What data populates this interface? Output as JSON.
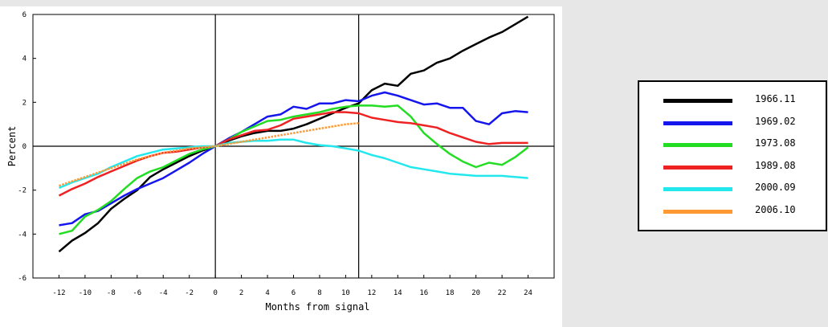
{
  "chart_data": {
    "type": "line",
    "title": "",
    "xlabel": "Months from signal",
    "ylabel": "Percent",
    "xlim": [
      -14,
      26
    ],
    "ylim": [
      -6,
      6
    ],
    "xticks": [
      -12,
      -10,
      -8,
      -6,
      -4,
      -2,
      0,
      2,
      4,
      6,
      8,
      10,
      12,
      14,
      16,
      18,
      20,
      22,
      24
    ],
    "xtick_labels": [
      "-12",
      "-10",
      "-8",
      "-6",
      "-4",
      "-2",
      "0",
      "2",
      "4",
      "6",
      "8",
      "10",
      "12",
      "14",
      "16",
      "18",
      "20",
      "22",
      "24"
    ],
    "yticks": [
      -6,
      -4,
      -2,
      0,
      2,
      4,
      6
    ],
    "ytick_labels": [
      "-6",
      "-4",
      "-2",
      "0",
      "2",
      "4",
      "6"
    ],
    "vertical_lines": [
      0,
      11
    ],
    "horizontal_lines": [
      0
    ],
    "grid": false,
    "legend_position": "right, outside plot",
    "series": [
      {
        "name": "1966.11",
        "color": "#000000",
        "dashed": false,
        "x": [
          -12,
          -11,
          -10,
          -9,
          -8,
          -7,
          -6,
          -5,
          -4,
          -3,
          -2,
          -1,
          0,
          1,
          2,
          3,
          4,
          5,
          6,
          7,
          8,
          9,
          10,
          11,
          12,
          13,
          14,
          15,
          16,
          17,
          18,
          19,
          20,
          21,
          22,
          23,
          24
        ],
        "y": [
          -4.8,
          -4.3,
          -3.95,
          -3.5,
          -2.85,
          -2.4,
          -2.0,
          -1.4,
          -1.05,
          -0.75,
          -0.45,
          -0.2,
          0.0,
          0.25,
          0.45,
          0.6,
          0.7,
          0.7,
          0.8,
          1.0,
          1.25,
          1.5,
          1.75,
          1.95,
          2.55,
          2.85,
          2.75,
          3.3,
          3.45,
          3.8,
          4.0,
          4.35,
          4.65,
          4.95,
          5.2,
          5.55,
          5.9
        ]
      },
      {
        "name": "1969.02",
        "color": "#1515ee",
        "dashed": false,
        "x": [
          -12,
          -11,
          -10,
          -9,
          -8,
          -7,
          -6,
          -5,
          -4,
          -3,
          -2,
          -1,
          0,
          1,
          2,
          3,
          4,
          5,
          6,
          7,
          8,
          9,
          10,
          11,
          12,
          13,
          14,
          15,
          16,
          17,
          18,
          19,
          20,
          21,
          22,
          23,
          24
        ],
        "y": [
          -3.6,
          -3.5,
          -3.1,
          -2.95,
          -2.6,
          -2.25,
          -1.95,
          -1.7,
          -1.45,
          -1.1,
          -0.75,
          -0.35,
          0.0,
          0.35,
          0.65,
          1.0,
          1.35,
          1.45,
          1.8,
          1.7,
          1.95,
          1.95,
          2.1,
          2.05,
          2.3,
          2.45,
          2.3,
          2.1,
          1.9,
          1.95,
          1.75,
          1.75,
          1.15,
          1.0,
          1.5,
          1.6,
          1.55
        ]
      },
      {
        "name": "1973.08",
        "color": "#22dd22",
        "dashed": false,
        "x": [
          -12,
          -11,
          -10,
          -9,
          -8,
          -7,
          -6,
          -5,
          -4,
          -3,
          -2,
          -1,
          0,
          1,
          2,
          3,
          4,
          5,
          6,
          7,
          8,
          9,
          10,
          11,
          12,
          13,
          14,
          15,
          16,
          17,
          18,
          19,
          20,
          21,
          22,
          23,
          24
        ],
        "y": [
          -4.0,
          -3.85,
          -3.2,
          -2.9,
          -2.5,
          -1.95,
          -1.45,
          -1.15,
          -0.95,
          -0.65,
          -0.35,
          -0.15,
          0.0,
          0.3,
          0.65,
          0.9,
          1.15,
          1.2,
          1.35,
          1.45,
          1.55,
          1.7,
          1.8,
          1.85,
          1.85,
          1.8,
          1.85,
          1.35,
          0.6,
          0.1,
          -0.35,
          -0.7,
          -0.95,
          -0.75,
          -0.85,
          -0.5,
          -0.05
        ]
      },
      {
        "name": "1989.08",
        "color": "#ee2222",
        "dashed": false,
        "x": [
          -12,
          -11,
          -10,
          -9,
          -8,
          -7,
          -6,
          -5,
          -4,
          -3,
          -2,
          -1,
          0,
          1,
          2,
          3,
          4,
          5,
          6,
          7,
          8,
          9,
          10,
          11,
          12,
          13,
          14,
          15,
          16,
          17,
          18,
          19,
          20,
          21,
          22,
          23,
          24
        ],
        "y": [
          -2.25,
          -1.95,
          -1.7,
          -1.4,
          -1.15,
          -0.9,
          -0.65,
          -0.45,
          -0.3,
          -0.25,
          -0.15,
          -0.05,
          0.0,
          0.3,
          0.5,
          0.7,
          0.75,
          0.95,
          1.25,
          1.35,
          1.45,
          1.55,
          1.55,
          1.5,
          1.3,
          1.2,
          1.1,
          1.05,
          0.95,
          0.85,
          0.6,
          0.4,
          0.2,
          0.1,
          0.15,
          0.15,
          0.15
        ]
      },
      {
        "name": "2000.09",
        "color": "#22e8ee",
        "dashed": false,
        "x": [
          -12,
          -11,
          -10,
          -9,
          -8,
          -7,
          -6,
          -5,
          -4,
          -3,
          -2,
          -1,
          0,
          1,
          2,
          3,
          4,
          5,
          6,
          7,
          8,
          9,
          10,
          11,
          12,
          13,
          14,
          15,
          16,
          17,
          18,
          19,
          20,
          21,
          22,
          23,
          24
        ],
        "y": [
          -1.9,
          -1.65,
          -1.45,
          -1.25,
          -0.95,
          -0.7,
          -0.45,
          -0.3,
          -0.15,
          -0.1,
          -0.05,
          0.0,
          0.0,
          0.15,
          0.2,
          0.25,
          0.25,
          0.3,
          0.3,
          0.15,
          0.05,
          0.0,
          -0.1,
          -0.2,
          -0.4,
          -0.55,
          -0.75,
          -0.95,
          -1.05,
          -1.15,
          -1.25,
          -1.3,
          -1.35,
          -1.35,
          -1.35,
          -1.4,
          -1.45
        ]
      },
      {
        "name": "2006.10",
        "color": "#ff9933",
        "dashed": true,
        "x": [
          -12,
          -11,
          -10,
          -9,
          -8,
          -7,
          -6,
          -5,
          -4,
          -3,
          -2,
          -1,
          0,
          1,
          2,
          3,
          4,
          5,
          6,
          7,
          8,
          9,
          10,
          11
        ],
        "y": [
          -1.8,
          -1.6,
          -1.4,
          -1.2,
          -1.0,
          -0.8,
          -0.6,
          -0.45,
          -0.3,
          -0.2,
          -0.1,
          -0.05,
          0.0,
          0.1,
          0.2,
          0.3,
          0.4,
          0.5,
          0.6,
          0.7,
          0.8,
          0.9,
          1.0,
          1.05
        ]
      }
    ]
  }
}
